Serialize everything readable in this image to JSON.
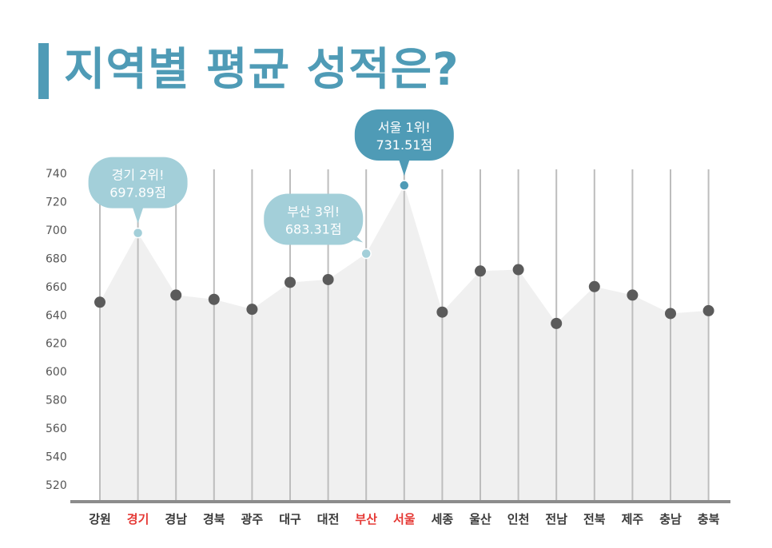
{
  "title": "지역별 평균 성적은?",
  "colors": {
    "title": "#4f9bb6",
    "top1": "#4f9bb6",
    "top23": "#a3cfd9",
    "dot": "#5b5b5b",
    "area": "#f0f0f0",
    "grid": "#bdbdbd",
    "highlight_label": "#e53935",
    "label": "#3a3a3a"
  },
  "chart_data": {
    "type": "line",
    "title": "지역별 평균 성적은?",
    "xlabel": "",
    "ylabel": "",
    "ylim": [
      510,
      745
    ],
    "yticks": [
      520,
      540,
      560,
      580,
      600,
      620,
      640,
      660,
      680,
      700,
      720,
      740
    ],
    "categories": [
      "강원",
      "경기",
      "경남",
      "경북",
      "광주",
      "대구",
      "대전",
      "부산",
      "서울",
      "세종",
      "울산",
      "인천",
      "전남",
      "전북",
      "제주",
      "충남",
      "충북"
    ],
    "values": [
      649,
      697.89,
      654,
      651,
      644,
      663,
      665,
      683.31,
      731.51,
      642,
      671,
      672,
      634,
      660,
      654,
      641,
      643
    ],
    "highlighted": [
      "경기",
      "부산",
      "서울"
    ],
    "annotations": [
      {
        "category": "서울",
        "line1": "서울 1위!",
        "line2": "731.51점",
        "rank": 1
      },
      {
        "category": "경기",
        "line1": "경기 2위!",
        "line2": "697.89점",
        "rank": 2
      },
      {
        "category": "부산",
        "line1": "부산 3위!",
        "line2": "683.31점",
        "rank": 3
      }
    ]
  }
}
